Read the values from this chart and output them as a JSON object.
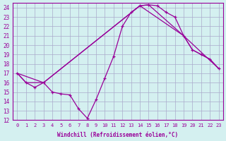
{
  "xlabel": "Windchill (Refroidissement éolien,°C)",
  "bg_color": "#d4f0f0",
  "line_color": "#990099",
  "grid_color": "#aaaacc",
  "xlim": [
    -0.5,
    23.5
  ],
  "ylim": [
    12,
    24.5
  ],
  "xticks": [
    0,
    1,
    2,
    3,
    4,
    5,
    6,
    7,
    8,
    9,
    10,
    11,
    12,
    13,
    14,
    15,
    16,
    17,
    18,
    19,
    20,
    21,
    22,
    23
  ],
  "yticks": [
    12,
    13,
    14,
    15,
    16,
    17,
    18,
    19,
    20,
    21,
    22,
    23,
    24
  ],
  "line1_x": [
    0,
    1,
    2,
    3,
    4,
    5,
    6,
    7,
    8,
    9,
    10,
    11,
    12,
    13,
    14,
    15,
    16,
    17,
    18,
    19,
    20,
    21,
    22,
    23
  ],
  "line1_y": [
    17,
    16,
    15.5,
    16,
    15,
    14.8,
    14.7,
    13.2,
    12.2,
    14.2,
    16.5,
    18.8,
    22.0,
    23.5,
    24.2,
    24.3,
    24.2,
    23.5,
    23.0,
    21.0,
    19.5,
    19.0,
    18.5,
    17.5
  ],
  "line2_x": [
    0,
    1,
    3,
    14,
    15,
    19,
    20,
    22,
    23
  ],
  "line2_y": [
    17,
    16,
    16,
    24.2,
    24.3,
    21.0,
    19.5,
    18.5,
    17.5
  ],
  "line3_x": [
    0,
    3,
    14,
    19,
    23
  ],
  "line3_y": [
    17,
    16,
    24.2,
    21.0,
    17.5
  ]
}
